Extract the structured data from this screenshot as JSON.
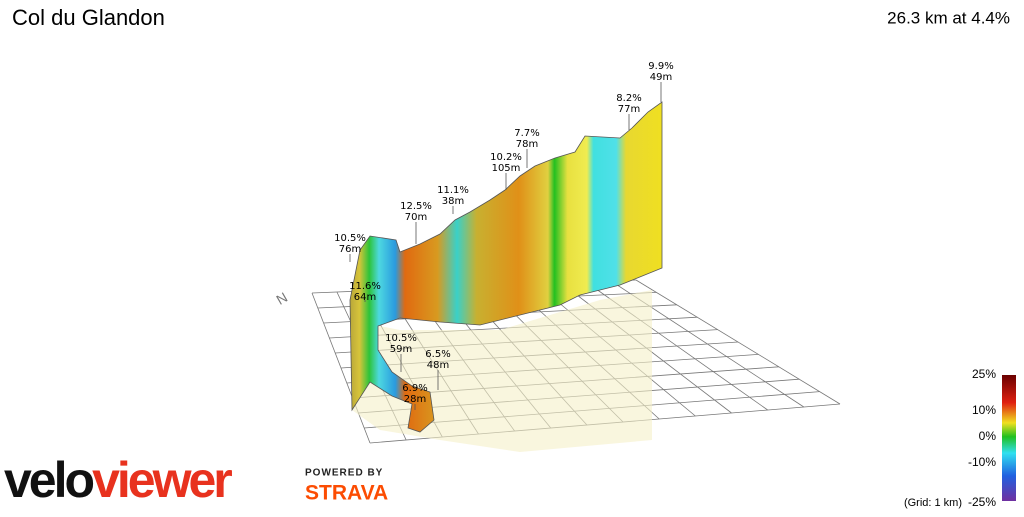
{
  "header": {
    "title": "Col du Glandon",
    "summary": "26.3 km at 4.4%"
  },
  "annotations": [
    {
      "grade": "9.9%",
      "length": "49m"
    },
    {
      "grade": "8.2%",
      "length": "77m"
    },
    {
      "grade": "7.7%",
      "length": "78m"
    },
    {
      "grade": "10.2%",
      "length": "105m"
    },
    {
      "grade": "11.1%",
      "length": "38m"
    },
    {
      "grade": "12.5%",
      "length": "70m"
    },
    {
      "grade": "10.5%",
      "length": "76m"
    },
    {
      "grade": "11.6%",
      "length": "64m"
    },
    {
      "grade": "10.5%",
      "length": "59m"
    },
    {
      "grade": "6.5%",
      "length": "48m"
    },
    {
      "grade": "6.9%",
      "length": "28m"
    }
  ],
  "compass": "N",
  "legend": {
    "labels": [
      "25%",
      "10%",
      "0%",
      "-10%",
      "-25%"
    ],
    "grid_note": "(Grid: 1 km)"
  },
  "branding": {
    "logo_start": "velo",
    "logo_end": "viewer",
    "powered_by": "POWERED BY",
    "partner": "STRAVA"
  }
}
